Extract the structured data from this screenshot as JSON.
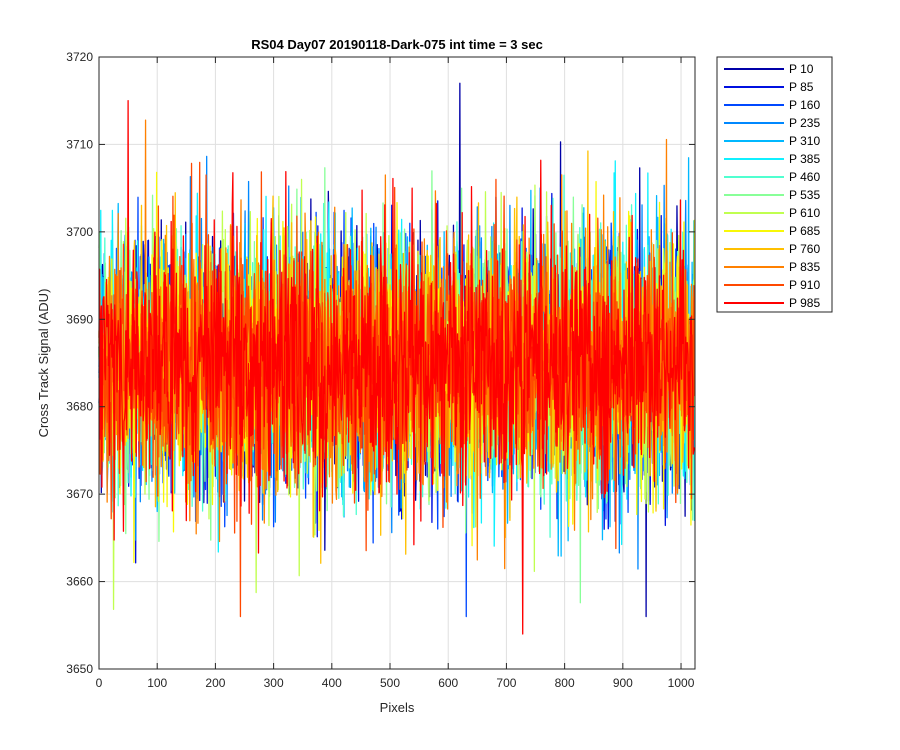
{
  "chart_data": {
    "type": "line",
    "title": "RS04 Day07 20190118-Dark-075 int time = 3 sec",
    "xlabel": "Pixels",
    "ylabel": "Cross Track Signal (ADU)",
    "xlim": [
      0,
      1024
    ],
    "ylim": [
      3650,
      3720
    ],
    "x_ticks": [
      0,
      100,
      200,
      300,
      400,
      500,
      600,
      700,
      800,
      900,
      1000
    ],
    "y_ticks": [
      3650,
      3660,
      3670,
      3680,
      3690,
      3700,
      3710,
      3720
    ],
    "grid": true,
    "legend_position": "outside-top-right",
    "noise_mean": 3685,
    "noise_std": 7,
    "n_points": 1024,
    "series": [
      {
        "name": "P 10",
        "color": "#0000a8"
      },
      {
        "name": "P 85",
        "color": "#0010e0"
      },
      {
        "name": "P 160",
        "color": "#0048ff"
      },
      {
        "name": "P 235",
        "color": "#0088ff"
      },
      {
        "name": "P 310",
        "color": "#00b8ff"
      },
      {
        "name": "P 385",
        "color": "#10f0ff"
      },
      {
        "name": "P 460",
        "color": "#50ffd0"
      },
      {
        "name": "P 535",
        "color": "#88ff98"
      },
      {
        "name": "P 610",
        "color": "#c0ff50"
      },
      {
        "name": "P 685",
        "color": "#f8f808"
      },
      {
        "name": "P 760",
        "color": "#ffc000"
      },
      {
        "name": "P 835",
        "color": "#ff8000"
      },
      {
        "name": "P 910",
        "color": "#ff4800"
      },
      {
        "name": "P 985",
        "color": "#ff0000"
      }
    ],
    "annotations": [
      {
        "series": "P 985",
        "x": 50,
        "y": 3715
      },
      {
        "series": "P 10",
        "x": 620,
        "y": 3717
      },
      {
        "series": "P 10",
        "x": 940,
        "y": 3656
      },
      {
        "series": "P 985",
        "x": 728,
        "y": 3654
      }
    ]
  }
}
